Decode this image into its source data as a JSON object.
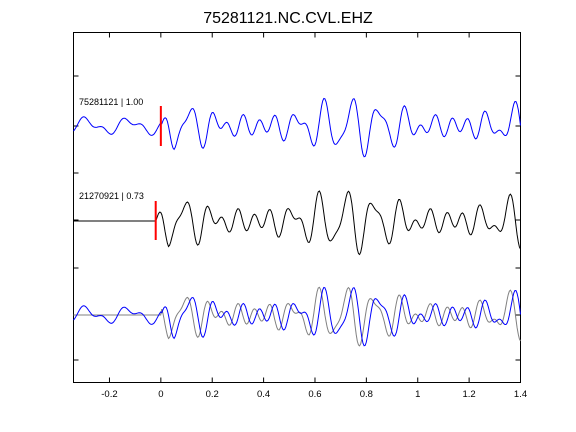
{
  "chart_data": {
    "type": "line",
    "title": "75281121.NC.CVL.EHZ",
    "xlabel": "",
    "ylabel": "",
    "xlim": [
      -0.34,
      1.4
    ],
    "x_ticks": [
      "-0.2",
      "0",
      "0.2",
      "0.4",
      "0.6",
      "0.8",
      "1",
      "1.2",
      "1.4"
    ],
    "x_tick_values": [
      -0.2,
      0,
      0.2,
      0.4,
      0.6,
      0.8,
      1.0,
      1.2,
      1.4
    ],
    "grid": false,
    "traces": [
      {
        "label": "75281121 | 1.00",
        "color": "#0000ff",
        "pick_time": 0.0
      },
      {
        "label": "21270921 | 0.73",
        "color": "#000000",
        "pick_time": -0.02
      },
      {
        "label": "",
        "color": "#0000ff",
        "overlay_color": "#808080"
      }
    ],
    "pick_color": "#ff0000"
  }
}
